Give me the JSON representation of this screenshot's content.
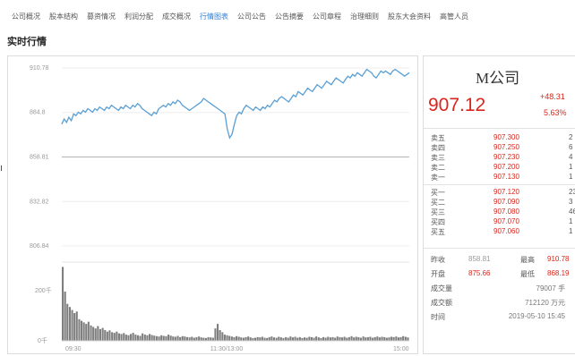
{
  "tabs": [
    {
      "label": "公司概况",
      "active": false
    },
    {
      "label": "股本结构",
      "active": false
    },
    {
      "label": "募资情况",
      "active": false
    },
    {
      "label": "利润分配",
      "active": false
    },
    {
      "label": "成交概况",
      "active": false
    },
    {
      "label": "行情图表",
      "active": true
    },
    {
      "label": "公司公告",
      "active": false
    },
    {
      "label": "公告摘要",
      "active": false
    },
    {
      "label": "公司章程",
      "active": false
    },
    {
      "label": "治理细则",
      "active": false
    },
    {
      "label": "股东大会资料",
      "active": false
    },
    {
      "label": "高管人员",
      "active": false
    }
  ],
  "section_title": "实时行情",
  "colors": {
    "up": "#d9261c",
    "line": "#5a9fd4",
    "volume": "#7f7f7f",
    "accent_tab": "#2f7fd6"
  },
  "quote": {
    "name": "M公司",
    "price": "907.12",
    "change": "+48.31",
    "change_pct": "5.63%",
    "sell": [
      {
        "label": "卖五",
        "price": "907.300",
        "vol": "2"
      },
      {
        "label": "卖四",
        "price": "907.250",
        "vol": "6"
      },
      {
        "label": "卖三",
        "price": "907.230",
        "vol": "4"
      },
      {
        "label": "卖二",
        "price": "907.200",
        "vol": "1"
      },
      {
        "label": "卖一",
        "price": "907.130",
        "vol": "1"
      }
    ],
    "buy": [
      {
        "label": "买一",
        "price": "907.120",
        "vol": "23"
      },
      {
        "label": "买二",
        "price": "907.090",
        "vol": "3"
      },
      {
        "label": "买三",
        "price": "907.080",
        "vol": "46"
      },
      {
        "label": "买四",
        "price": "907.070",
        "vol": "1"
      },
      {
        "label": "买五",
        "price": "907.060",
        "vol": "1"
      }
    ],
    "stats": {
      "prev_close_label": "昨收",
      "prev_close": "858.81",
      "high_label": "最高",
      "high": "910.78",
      "open_label": "开盘",
      "open": "875.66",
      "low_label": "最低",
      "low": "868.19",
      "volume_label": "成交量",
      "volume": "79007 手",
      "amount_label": "成交额",
      "amount": "712120 万元",
      "time_label": "时间",
      "time": "2019-05-10 15:45"
    }
  },
  "chart_data": {
    "type": "line",
    "title": "",
    "y_ticks": [
      "910.78",
      "884.8",
      "858.81",
      "832.82",
      "806.84"
    ],
    "ylim": [
      806.84,
      910.78
    ],
    "prev_close": 858.81,
    "x_ticks": [
      "09:30",
      "11:30/13:00",
      "15:00"
    ],
    "price_series": [
      878,
      881,
      879,
      882,
      880,
      884,
      883,
      885,
      884,
      886,
      885,
      887,
      886,
      885,
      887,
      886,
      888,
      887,
      886,
      888,
      887,
      889,
      888,
      887,
      886,
      888,
      887,
      889,
      888,
      887,
      889,
      888,
      890,
      889,
      887,
      886,
      885,
      884,
      883,
      885,
      884,
      887,
      888,
      889,
      888,
      890,
      889,
      891,
      890,
      892,
      891,
      889,
      888,
      887,
      886,
      887,
      888,
      889,
      890,
      891,
      893,
      892,
      891,
      890,
      889,
      888,
      887,
      886,
      885,
      884,
      875,
      870,
      872,
      878,
      883,
      885,
      884,
      887,
      889,
      888,
      887,
      886,
      888,
      887,
      886,
      888,
      887,
      889,
      888,
      890,
      892,
      891,
      893,
      894,
      893,
      892,
      891,
      893,
      895,
      894,
      897,
      896,
      895,
      897,
      899,
      898,
      897,
      899,
      901,
      900,
      899,
      901,
      903,
      902,
      901,
      903,
      905,
      904,
      903,
      902,
      904,
      906,
      905,
      907,
      906,
      908,
      907,
      906,
      908,
      910,
      909,
      908,
      906,
      905,
      907,
      909,
      908,
      909,
      908,
      907,
      909,
      910,
      909,
      908,
      907,
      906,
      907,
      908
    ],
    "volume_label_top": "200千",
    "volume_label_zero": "0千",
    "volume_max": 250,
    "volume_series": [
      240,
      160,
      120,
      110,
      100,
      90,
      95,
      70,
      65,
      60,
      55,
      62,
      50,
      45,
      40,
      48,
      38,
      42,
      35,
      30,
      34,
      28,
      26,
      30,
      24,
      22,
      25,
      20,
      18,
      22,
      26,
      20,
      18,
      16,
      24,
      20,
      18,
      22,
      19,
      17,
      15,
      14,
      18,
      16,
      15,
      20,
      17,
      14,
      13,
      16,
      12,
      15,
      14,
      12,
      11,
      13,
      10,
      12,
      14,
      11,
      10,
      9,
      12,
      11,
      10,
      40,
      55,
      35,
      28,
      20,
      18,
      16,
      14,
      12,
      15,
      13,
      11,
      10,
      12,
      14,
      11,
      9,
      10,
      12,
      11,
      13,
      10,
      9,
      12,
      14,
      11,
      10,
      13,
      11,
      9,
      12,
      10,
      14,
      11,
      13,
      10,
      12,
      9,
      11,
      10,
      13,
      12,
      10,
      14,
      11,
      9,
      12,
      10,
      13,
      11,
      12,
      10,
      14,
      12,
      11,
      13,
      10,
      12,
      15,
      11,
      13,
      12,
      10,
      14,
      11,
      12,
      13,
      10,
      12,
      14,
      11,
      13,
      12,
      10,
      11,
      13,
      12,
      14,
      11,
      12,
      15,
      13,
      11
    ]
  }
}
